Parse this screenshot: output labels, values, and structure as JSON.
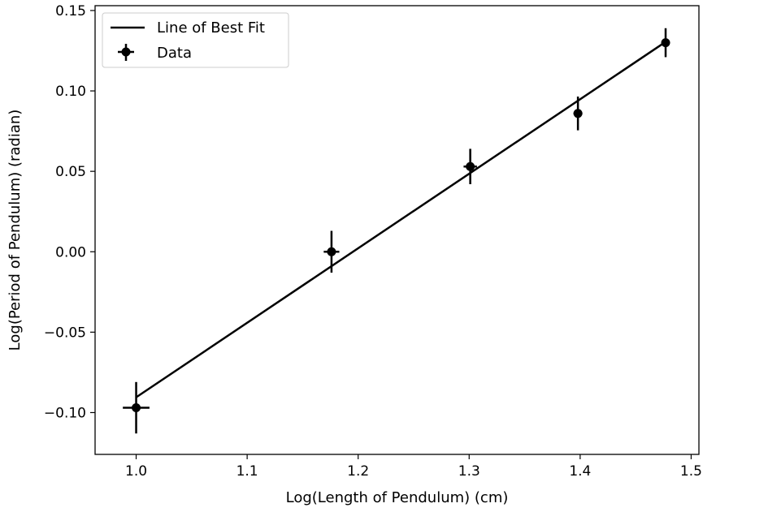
{
  "chart_data": {
    "type": "scatter",
    "xlabel": "Log(Length of Pendulum) (cm)",
    "ylabel": "Log(Period of Pendulum) (radian)",
    "xlim": [
      0.963,
      1.507
    ],
    "ylim": [
      -0.126,
      0.153
    ],
    "x_ticks": [
      1.0,
      1.1,
      1.2,
      1.3,
      1.4,
      1.5
    ],
    "x_tick_labels": [
      "1.0",
      "1.1",
      "1.2",
      "1.3",
      "1.4",
      "1.5"
    ],
    "y_ticks": [
      -0.1,
      -0.05,
      0.0,
      0.05,
      0.1,
      0.15
    ],
    "y_tick_labels": [
      "−0.10",
      "−0.05",
      "0.00",
      "0.05",
      "0.10",
      "0.15"
    ],
    "grid": false,
    "legend": {
      "placement": "top-left",
      "entries": [
        {
          "label": "Line of Best Fit",
          "kind": "line"
        },
        {
          "label": "Data",
          "kind": "errorbar"
        }
      ]
    },
    "colors": {
      "line": "#000000",
      "points": "#000000"
    },
    "fit_line": {
      "x": [
        1.0,
        1.477
      ],
      "y": [
        -0.0905,
        0.1305
      ]
    },
    "points": [
      {
        "x": 1.0,
        "y": -0.097,
        "xerr": 0.012,
        "yerr": 0.016
      },
      {
        "x": 1.176,
        "y": 0.0,
        "xerr": 0.007,
        "yerr": 0.013
      },
      {
        "x": 1.301,
        "y": 0.053,
        "xerr": 0.006,
        "yerr": 0.011
      },
      {
        "x": 1.398,
        "y": 0.086,
        "xerr": 0.004,
        "yerr": 0.0105
      },
      {
        "x": 1.477,
        "y": 0.13,
        "xerr": 0.003,
        "yerr": 0.009
      }
    ]
  }
}
